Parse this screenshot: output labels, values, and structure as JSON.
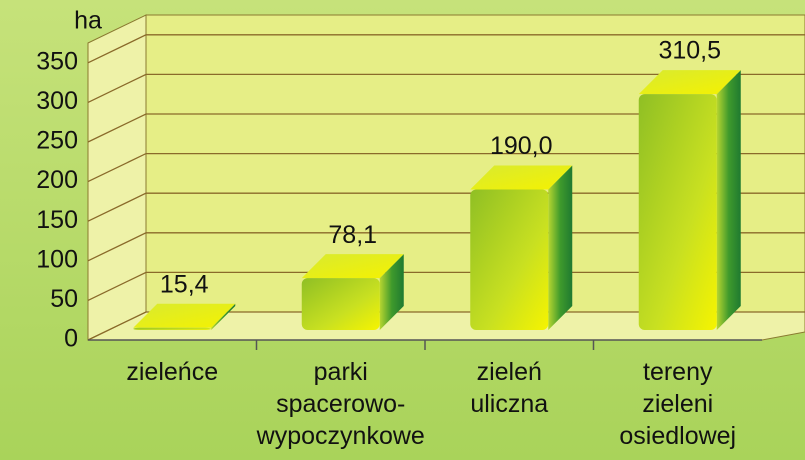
{
  "chart_data": {
    "type": "bar3d",
    "y_unit": "ha",
    "categories": [
      "zieleńce",
      "parki\nspacerowo-\nwypoczynkowe",
      "zieleń\nuliczna",
      "tereny\nzieleni\nosiedlowej"
    ],
    "values": [
      15.4,
      78.1,
      190.0,
      310.5
    ],
    "value_labels": [
      "15,4",
      "78,1",
      "190,0",
      "310,5"
    ],
    "ylim": [
      0,
      375
    ],
    "yticks": [
      0,
      50,
      100,
      150,
      200,
      250,
      300,
      350
    ],
    "grid": true
  }
}
